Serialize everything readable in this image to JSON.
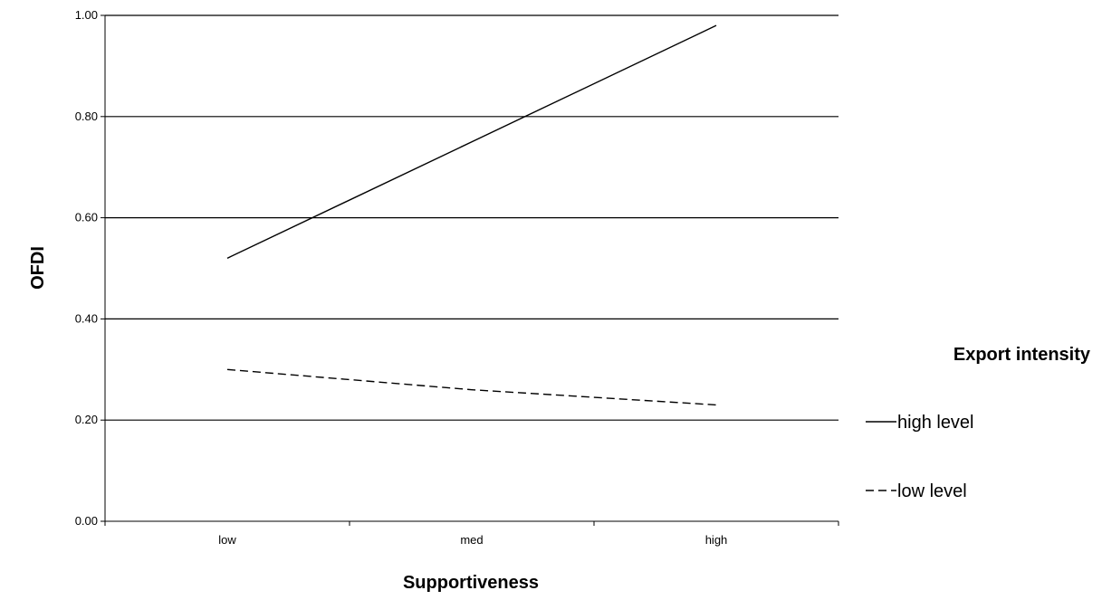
{
  "chart_data": {
    "type": "line",
    "title": "",
    "xlabel": "Supportiveness",
    "ylabel": "OFDI",
    "categories": [
      "low",
      "med",
      "high"
    ],
    "ylim": [
      0,
      1
    ],
    "yticks": [
      "0.00",
      "0.20",
      "0.40",
      "0.60",
      "0.80",
      "1.00"
    ],
    "grid": true,
    "legend": {
      "title": "Export intensity",
      "position": "right"
    },
    "series": [
      {
        "name": "high level",
        "values": [
          0.52,
          0.75,
          0.98
        ],
        "style": "solid",
        "color": "#000000"
      },
      {
        "name": "low level",
        "values": [
          0.3,
          0.26,
          0.23
        ],
        "style": "dashed",
        "color": "#000000"
      }
    ]
  }
}
